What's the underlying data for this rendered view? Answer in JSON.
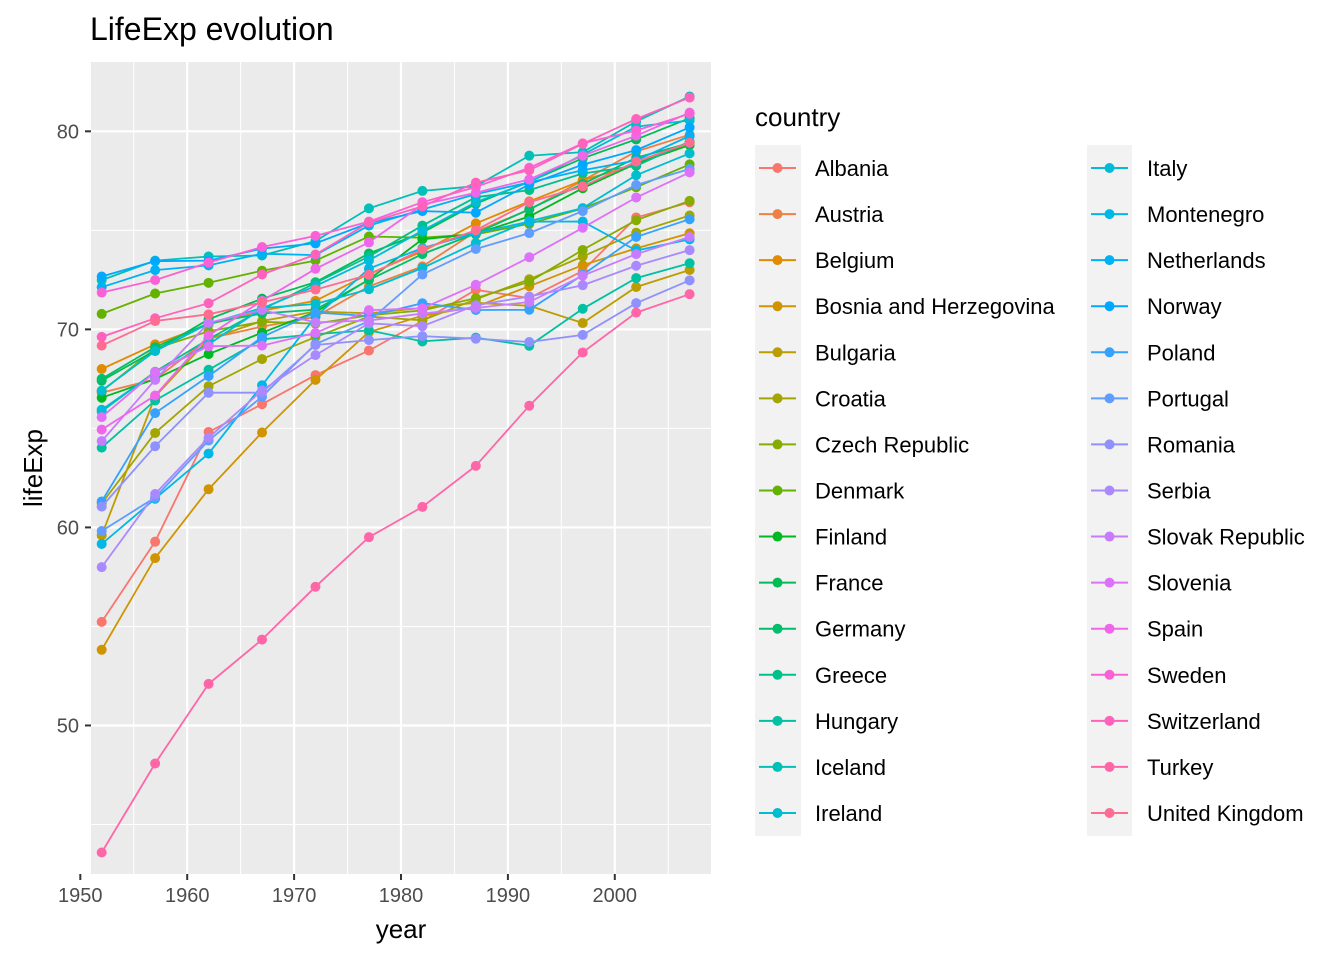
{
  "chart_data": {
    "type": "line",
    "title": "LifeExp evolution",
    "xlabel": "year",
    "ylabel": "lifeExp",
    "xlim": [
      1951,
      2009
    ],
    "ylim": [
      42.5,
      83.5
    ],
    "x_ticks": [
      1950,
      1960,
      1970,
      1980,
      1990,
      2000
    ],
    "y_ticks": [
      50,
      60,
      70,
      80
    ],
    "grid": true,
    "legend_title": "country",
    "legend_position": "right",
    "x": [
      1952,
      1957,
      1962,
      1967,
      1972,
      1977,
      1982,
      1987,
      1992,
      1997,
      2002,
      2007
    ],
    "series": [
      {
        "name": "Albania",
        "color": "#F8766D",
        "values": [
          55.23,
          59.28,
          64.82,
          66.22,
          67.69,
          68.93,
          70.42,
          72.0,
          71.58,
          72.95,
          75.65,
          76.42
        ]
      },
      {
        "name": "Austria",
        "color": "#EE8043",
        "values": [
          66.8,
          67.48,
          69.54,
          70.14,
          70.63,
          72.17,
          73.18,
          74.94,
          76.04,
          77.51,
          78.98,
          79.83
        ]
      },
      {
        "name": "Belgium",
        "color": "#E08B00",
        "values": [
          68.0,
          69.24,
          70.25,
          70.94,
          71.44,
          72.8,
          73.93,
          75.35,
          76.46,
          77.53,
          78.32,
          79.44
        ]
      },
      {
        "name": "Bosnia and Herzegovina",
        "color": "#CF9400",
        "values": [
          53.82,
          58.45,
          61.93,
          64.79,
          67.45,
          69.86,
          70.69,
          71.14,
          72.18,
          73.24,
          74.09,
          74.85
        ]
      },
      {
        "name": "Bulgaria",
        "color": "#BB9D00",
        "values": [
          59.6,
          66.61,
          69.51,
          70.42,
          70.9,
          70.81,
          71.08,
          71.34,
          71.19,
          70.32,
          72.14,
          73.0
        ]
      },
      {
        "name": "Croatia",
        "color": "#A3A500",
        "values": [
          61.21,
          64.77,
          67.13,
          68.5,
          69.61,
          70.64,
          70.46,
          71.52,
          72.53,
          73.68,
          74.88,
          75.75
        ]
      },
      {
        "name": "Czech Republic",
        "color": "#87AC00",
        "values": [
          66.87,
          69.03,
          69.9,
          70.38,
          70.29,
          70.71,
          70.96,
          71.58,
          72.4,
          74.01,
          75.51,
          76.49
        ]
      },
      {
        "name": "Denmark",
        "color": "#64B200",
        "values": [
          70.78,
          71.81,
          72.35,
          72.96,
          73.47,
          74.69,
          74.63,
          74.8,
          75.33,
          76.11,
          77.18,
          78.33
        ]
      },
      {
        "name": "Finland",
        "color": "#00B81F",
        "values": [
          66.55,
          67.49,
          68.75,
          69.83,
          70.87,
          72.52,
          74.55,
          74.83,
          75.7,
          77.13,
          78.37,
          79.31
        ]
      },
      {
        "name": "France",
        "color": "#00BC56",
        "values": [
          67.41,
          68.93,
          70.51,
          71.55,
          72.38,
          73.83,
          74.89,
          76.34,
          77.46,
          78.64,
          79.59,
          80.66
        ]
      },
      {
        "name": "Germany",
        "color": "#00BE6C",
        "values": [
          67.5,
          69.1,
          70.3,
          70.8,
          71.0,
          72.5,
          73.8,
          74.847,
          76.07,
          77.34,
          78.67,
          79.406
        ]
      },
      {
        "name": "Greece",
        "color": "#00C08B",
        "values": [
          65.86,
          67.86,
          69.51,
          71.0,
          72.34,
          73.68,
          75.24,
          76.67,
          77.03,
          77.869,
          78.256,
          79.483
        ]
      },
      {
        "name": "Hungary",
        "color": "#00C1A2",
        "values": [
          64.03,
          66.41,
          67.96,
          69.5,
          69.76,
          69.95,
          69.39,
          69.58,
          69.17,
          71.04,
          72.59,
          73.338
        ]
      },
      {
        "name": "Iceland",
        "color": "#00C0B8",
        "values": [
          72.49,
          73.47,
          73.68,
          73.73,
          74.46,
          76.11,
          76.99,
          77.23,
          78.77,
          78.95,
          80.5,
          81.757
        ]
      },
      {
        "name": "Ireland",
        "color": "#00BDD0",
        "values": [
          66.91,
          68.9,
          70.29,
          71.08,
          71.28,
          72.03,
          73.1,
          74.36,
          75.467,
          76.122,
          77.783,
          78.885
        ]
      },
      {
        "name": "Italy",
        "color": "#00BCD8",
        "values": [
          65.94,
          67.81,
          69.24,
          71.06,
          72.19,
          73.48,
          74.98,
          76.42,
          77.44,
          78.82,
          80.24,
          80.546
        ]
      },
      {
        "name": "Montenegro",
        "color": "#00B8E7",
        "values": [
          59.164,
          61.448,
          63.728,
          67.178,
          70.636,
          73.066,
          74.101,
          74.865,
          75.435,
          75.445,
          73.981,
          74.543
        ]
      },
      {
        "name": "Netherlands",
        "color": "#00B2F3",
        "values": [
          72.13,
          72.99,
          73.23,
          73.82,
          73.75,
          75.24,
          76.05,
          76.83,
          77.42,
          78.03,
          78.53,
          79.762
        ]
      },
      {
        "name": "Norway",
        "color": "#00A9FF",
        "values": [
          72.67,
          73.44,
          73.47,
          74.08,
          74.34,
          75.37,
          75.97,
          75.89,
          77.32,
          78.32,
          79.05,
          80.196
        ]
      },
      {
        "name": "Poland",
        "color": "#35A2FF",
        "values": [
          61.31,
          65.77,
          67.64,
          69.61,
          70.85,
          70.67,
          71.32,
          70.98,
          70.99,
          72.75,
          74.67,
          75.563
        ]
      },
      {
        "name": "Portugal",
        "color": "#619CFF",
        "values": [
          59.82,
          61.51,
          64.39,
          66.6,
          69.26,
          70.41,
          72.77,
          74.06,
          74.86,
          75.97,
          77.29,
          78.098
        ]
      },
      {
        "name": "Romania",
        "color": "#8F91FF",
        "values": [
          61.05,
          64.1,
          66.8,
          66.8,
          69.21,
          69.46,
          69.66,
          69.53,
          69.36,
          69.72,
          71.322,
          72.476
        ]
      },
      {
        "name": "Serbia",
        "color": "#AA88FF",
        "values": [
          57.996,
          61.685,
          64.531,
          66.914,
          68.7,
          70.3,
          70.162,
          71.218,
          71.659,
          72.232,
          73.213,
          74.002
        ]
      },
      {
        "name": "Slovak Republic",
        "color": "#C77CFF",
        "values": [
          64.36,
          67.45,
          70.33,
          70.98,
          70.35,
          70.45,
          70.8,
          71.08,
          71.38,
          72.71,
          73.8,
          74.663
        ]
      },
      {
        "name": "Slovenia",
        "color": "#DE71F9",
        "values": [
          65.57,
          67.85,
          69.15,
          69.18,
          69.82,
          70.97,
          71.063,
          72.25,
          73.64,
          75.13,
          76.66,
          77.926
        ]
      },
      {
        "name": "Spain",
        "color": "#F066EA",
        "values": [
          64.94,
          66.66,
          69.69,
          71.44,
          73.06,
          74.39,
          76.3,
          76.9,
          77.57,
          78.77,
          79.78,
          80.941
        ]
      },
      {
        "name": "Sweden",
        "color": "#FB61D7",
        "values": [
          71.86,
          72.49,
          73.37,
          74.16,
          74.72,
          75.44,
          76.42,
          77.19,
          78.16,
          79.39,
          80.04,
          80.884
        ]
      },
      {
        "name": "Switzerland",
        "color": "#FF62BC",
        "values": [
          69.62,
          70.56,
          71.32,
          72.77,
          73.78,
          75.39,
          76.21,
          77.41,
          78.03,
          79.37,
          80.62,
          81.701
        ]
      },
      {
        "name": "Turkey",
        "color": "#FF66A8",
        "values": [
          43.585,
          48.079,
          52.098,
          54.336,
          57.005,
          59.507,
          61.036,
          63.108,
          66.146,
          68.835,
          70.845,
          71.777
        ]
      },
      {
        "name": "United Kingdom",
        "color": "#FF6C91",
        "values": [
          69.18,
          70.42,
          70.76,
          71.36,
          72.01,
          72.76,
          74.04,
          75.007,
          76.42,
          77.218,
          78.471,
          79.425
        ]
      }
    ]
  }
}
